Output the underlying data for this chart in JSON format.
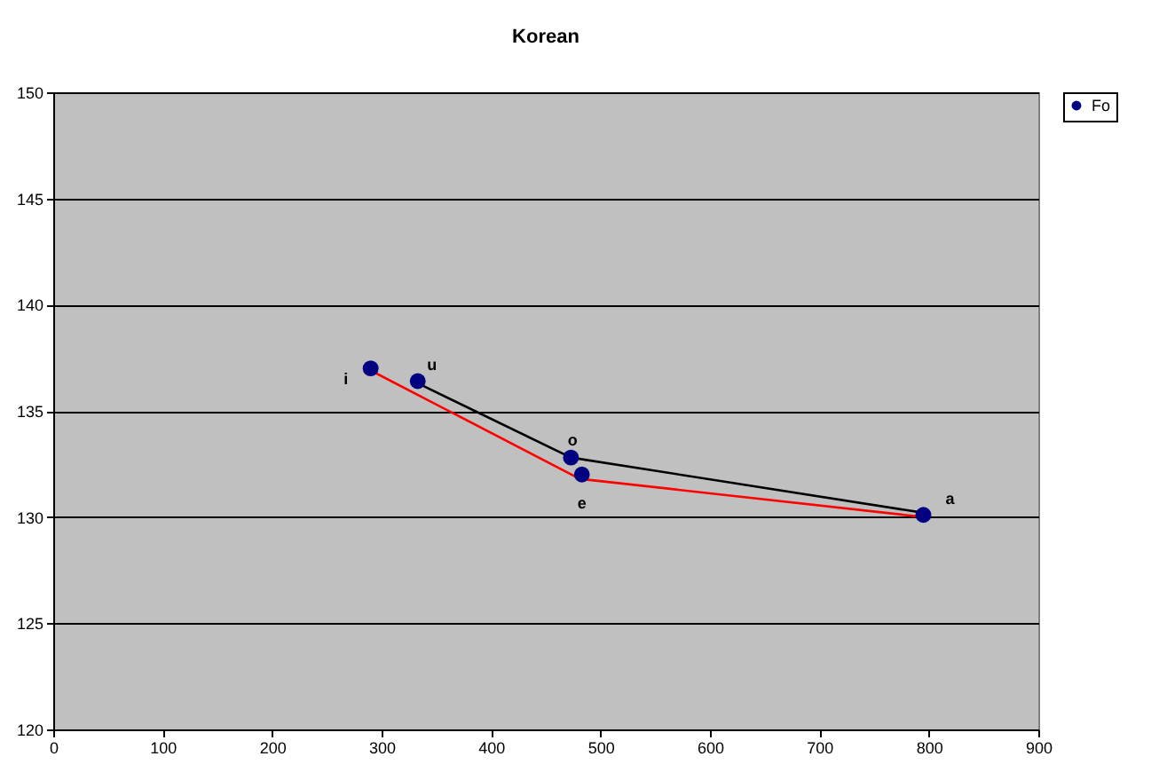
{
  "chart_data": {
    "type": "scatter",
    "title": "Korean",
    "series": [
      {
        "name": "Fo",
        "type": "scatter",
        "marker": "circle",
        "color": "#000080",
        "x": [
          290,
          333,
          473,
          483,
          795
        ],
        "values": [
          137.0,
          136.4,
          132.8,
          132.0,
          130.1
        ]
      },
      {
        "type": "line",
        "marker": "none",
        "color": "#000000",
        "x": [
          333,
          473,
          795
        ],
        "values": [
          136.3,
          132.8,
          130.2
        ]
      },
      {
        "type": "line",
        "marker": "none",
        "color": "#ff0000",
        "x": [
          290,
          481,
          795
        ],
        "values": [
          136.9,
          131.8,
          130.0
        ]
      }
    ],
    "annotations": [
      {
        "text": "i",
        "x": 290,
        "y": 137.0
      },
      {
        "text": "u",
        "x": 333,
        "y": 136.4
      },
      {
        "text": "o",
        "x": 473,
        "y": 132.8
      },
      {
        "text": "e",
        "x": 483,
        "y": 132.0
      },
      {
        "text": "a",
        "x": 795,
        "y": 130.1
      }
    ],
    "xlim": [
      0,
      900
    ],
    "xticks": [
      0,
      100,
      200,
      300,
      400,
      500,
      600,
      700,
      800,
      900
    ],
    "ylim": [
      120,
      150
    ],
    "yticks": [
      120,
      125,
      130,
      135,
      140,
      145,
      150
    ],
    "grid": "y",
    "legend": "right"
  }
}
